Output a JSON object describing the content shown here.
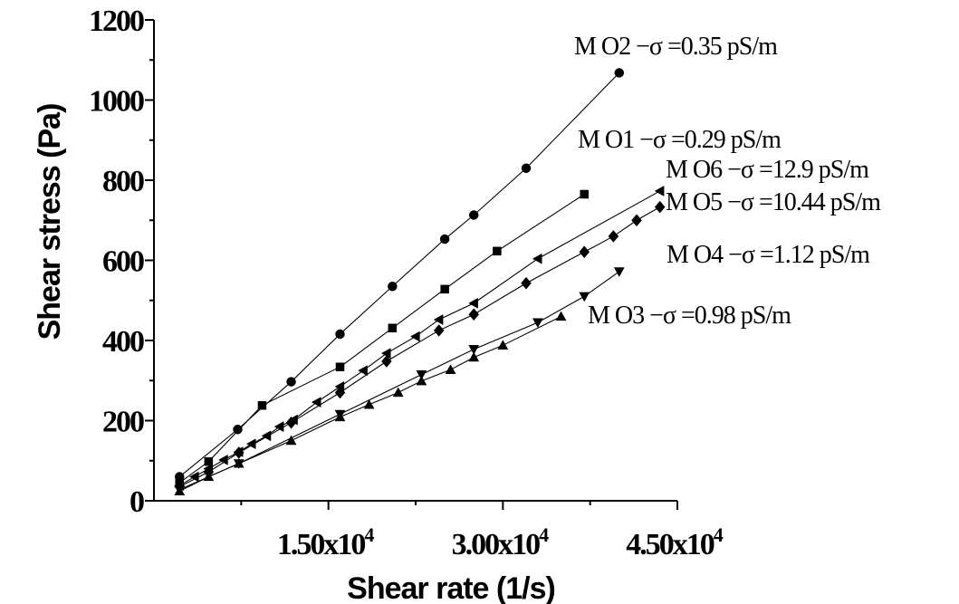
{
  "chart_data": {
    "type": "scatter",
    "title": "",
    "xlabel": "Shear rate (1/s)",
    "ylabel": "Shear stress (Pa)",
    "xlim": [
      0,
      45000
    ],
    "ylim": [
      0,
      1200
    ],
    "x_ticks": [
      {
        "value": 15000,
        "mantissa": "1.50x10",
        "exp": "4"
      },
      {
        "value": 30000,
        "mantissa": "3.00x10",
        "exp": "4"
      },
      {
        "value": 45000,
        "mantissa": "4.50x10",
        "exp": "4"
      }
    ],
    "y_ticks": [
      {
        "value": 0,
        "label": "0"
      },
      {
        "value": 200,
        "label": "200"
      },
      {
        "value": 400,
        "label": "400"
      },
      {
        "value": 600,
        "label": "600"
      },
      {
        "value": 800,
        "label": "800"
      },
      {
        "value": 1000,
        "label": "1000"
      },
      {
        "value": 1200,
        "label": "1200"
      }
    ],
    "grid": false,
    "legend": "inline labels at line ends",
    "series": [
      {
        "name": "M O2 −σ =0.35 pS/m",
        "marker": "circle",
        "points": [
          [
            2200,
            60
          ],
          [
            7200,
            178
          ],
          [
            11800,
            297
          ],
          [
            16000,
            416
          ],
          [
            20500,
            535
          ],
          [
            25000,
            653
          ],
          [
            27500,
            713
          ],
          [
            32000,
            830
          ],
          [
            40000,
            1068
          ]
        ]
      },
      {
        "name": "M O1 −σ =0.29 pS/m",
        "marker": "square",
        "points": [
          [
            2200,
            45
          ],
          [
            4700,
            98
          ],
          [
            9300,
            238
          ],
          [
            16000,
            334
          ],
          [
            20500,
            431
          ],
          [
            25000,
            528
          ],
          [
            29500,
            623
          ],
          [
            37000,
            765
          ]
        ]
      },
      {
        "name": "M O6 −σ =12.9 pS/m",
        "marker": "triangle-left",
        "points": [
          [
            2200,
            38
          ],
          [
            3500,
            60
          ],
          [
            4700,
            80
          ],
          [
            6000,
            102
          ],
          [
            7300,
            122
          ],
          [
            8400,
            142
          ],
          [
            9700,
            162
          ],
          [
            10800,
            185
          ],
          [
            12000,
            202
          ],
          [
            14000,
            246
          ],
          [
            16000,
            285
          ],
          [
            18000,
            325
          ],
          [
            20000,
            368
          ],
          [
            22500,
            410
          ],
          [
            24500,
            452
          ],
          [
            27500,
            493
          ],
          [
            33000,
            604
          ],
          [
            43500,
            773
          ]
        ]
      },
      {
        "name": "M O5 −σ =10.44 pS/m",
        "marker": "diamond",
        "points": [
          [
            2200,
            35
          ],
          [
            4700,
            72
          ],
          [
            7300,
            120
          ],
          [
            11800,
            195
          ],
          [
            16000,
            270
          ],
          [
            20000,
            348
          ],
          [
            24500,
            425
          ],
          [
            27500,
            465
          ],
          [
            32000,
            543
          ],
          [
            37000,
            621
          ],
          [
            39500,
            660
          ],
          [
            41500,
            700
          ],
          [
            43500,
            733
          ]
        ]
      },
      {
        "name": "M O4 −σ =1.12 pS/m",
        "marker": "triangle-down",
        "points": [
          [
            2200,
            28
          ],
          [
            7300,
            93
          ],
          [
            16000,
            216
          ],
          [
            23000,
            315
          ],
          [
            27500,
            378
          ],
          [
            33000,
            445
          ],
          [
            37000,
            510
          ],
          [
            40000,
            572
          ]
        ]
      },
      {
        "name": "M O3 −σ =0.98 pS/m",
        "marker": "triangle-up",
        "points": [
          [
            2200,
            24
          ],
          [
            4700,
            60
          ],
          [
            7300,
            93
          ],
          [
            11800,
            150
          ],
          [
            16000,
            209
          ],
          [
            18500,
            240
          ],
          [
            21000,
            270
          ],
          [
            23000,
            299
          ],
          [
            25500,
            327
          ],
          [
            27500,
            358
          ],
          [
            30000,
            388
          ],
          [
            35000,
            460
          ]
        ]
      }
    ]
  }
}
